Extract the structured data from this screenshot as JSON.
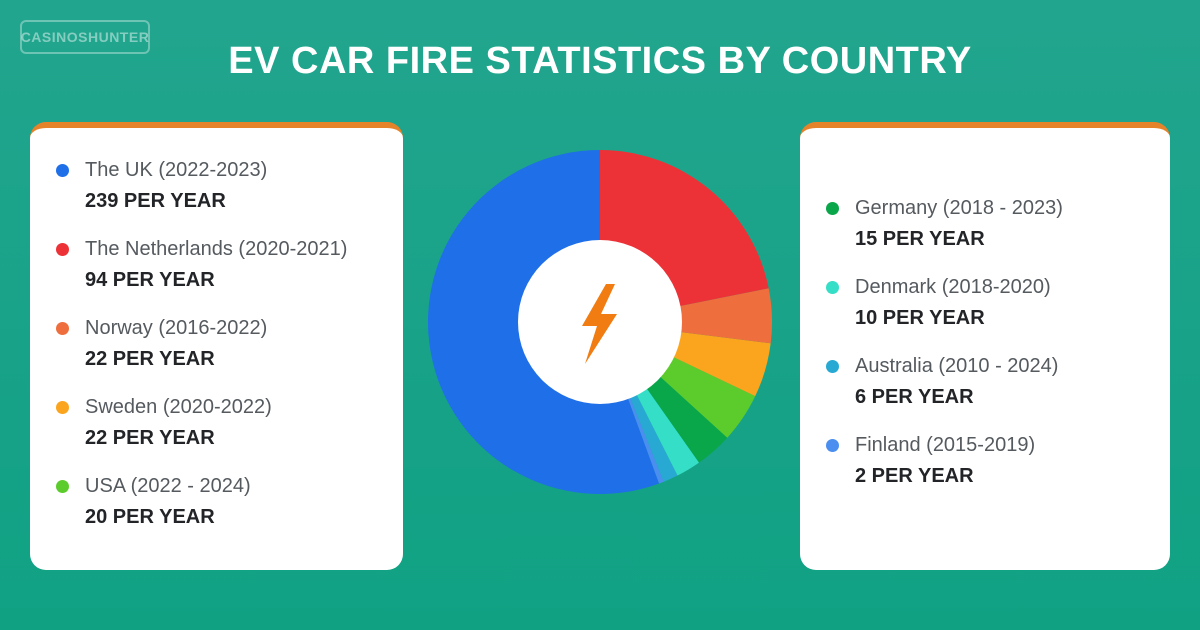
{
  "brand": {
    "logo_text": "CASINOSHUNTER"
  },
  "title": "EV CAR FIRE STATISTICS BY COUNTRY",
  "left_entries": [
    {
      "label": "The UK (2022-2023)",
      "value_text": "239 PER YEAR",
      "color": "#1f6fe8"
    },
    {
      "label": "The Netherlands (2020-2021)",
      "value_text": "94 PER YEAR",
      "color": "#ec3237"
    },
    {
      "label": "Norway (2016-2022)",
      "value_text": "22 PER YEAR",
      "color": "#ee6f3d"
    },
    {
      "label": "Sweden (2020-2022)",
      "value_text": "22 PER YEAR",
      "color": "#fba51f"
    },
    {
      "label": "USA (2022 - 2024)",
      "value_text": "20 PER YEAR",
      "color": "#5ccc2c"
    }
  ],
  "right_entries": [
    {
      "label": "Germany (2018 - 2023)",
      "value_text": "15 PER YEAR",
      "color": "#0aa64a"
    },
    {
      "label": "Denmark (2018-2020)",
      "value_text": "10 PER YEAR",
      "color": "#35dec6"
    },
    {
      "label": "Australia (2010 - 2024)",
      "value_text": "6 PER YEAR",
      "color": "#27a9d3"
    },
    {
      "label": "Finland (2015-2019)",
      "value_text": "2 PER YEAR",
      "color": "#4a8ff0"
    }
  ],
  "center_icon": "lightning-bolt-icon",
  "chart_data": {
    "type": "pie",
    "title": "EV CAR FIRE STATISTICS BY COUNTRY",
    "unit": "PER YEAR",
    "donut": true,
    "slices": [
      {
        "label": "The UK (2022-2023)",
        "value": 239,
        "color": "#1f6fe8"
      },
      {
        "label": "Finland (2015-2019)",
        "value": 2,
        "color": "#4a8ff0"
      },
      {
        "label": "Australia (2010 - 2024)",
        "value": 6,
        "color": "#27a9d3"
      },
      {
        "label": "Denmark (2018-2020)",
        "value": 10,
        "color": "#35dec6"
      },
      {
        "label": "Germany (2018 - 2023)",
        "value": 15,
        "color": "#0aa64a"
      },
      {
        "label": "USA (2022 - 2024)",
        "value": 20,
        "color": "#5ccc2c"
      },
      {
        "label": "Sweden (2020-2022)",
        "value": 22,
        "color": "#fba51f"
      },
      {
        "label": "Norway (2016-2022)",
        "value": 22,
        "color": "#ee6f3d"
      },
      {
        "label": "The Netherlands (2020-2021)",
        "value": 94,
        "color": "#ec3237"
      }
    ]
  }
}
